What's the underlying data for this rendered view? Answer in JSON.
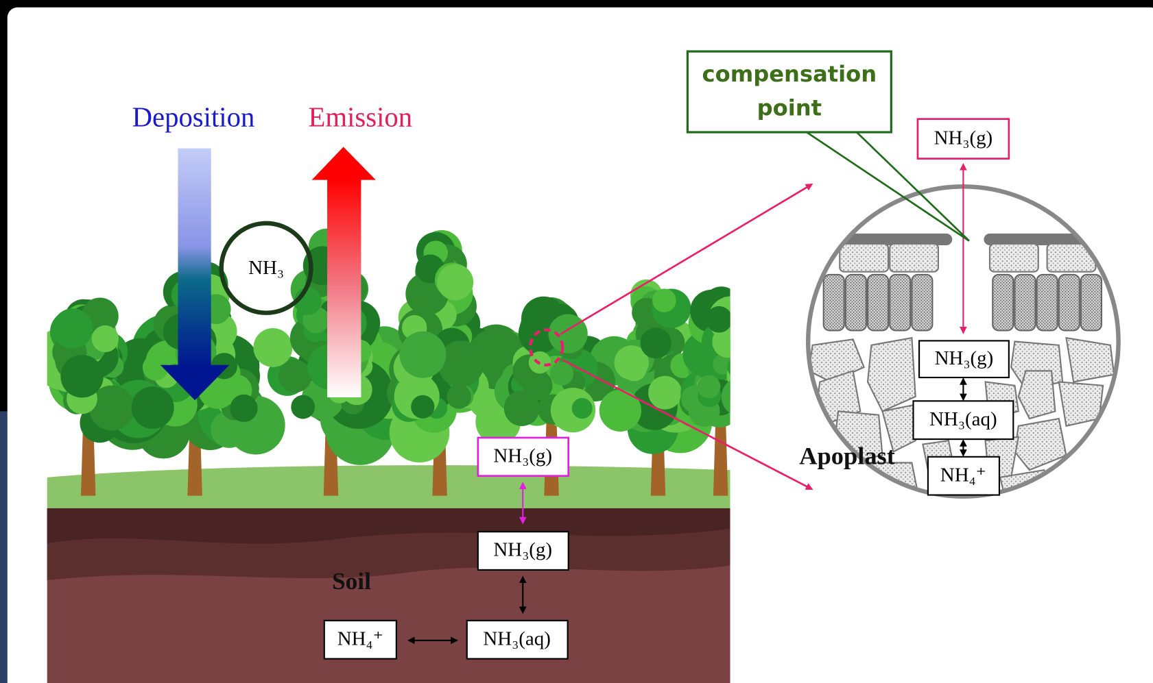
{
  "header": {
    "deposition": "Deposition",
    "emission": "Emission"
  },
  "canopy": {
    "molecule": "NH₃"
  },
  "soil": {
    "label": "Soil",
    "nodes": [
      "NH₃(g)",
      "NH₃(g)",
      "NH₃(aq)",
      "NH₄⁺"
    ]
  },
  "leaf": {
    "callout": "compensation point",
    "label": "Apoplast",
    "nodes": [
      "NH₃(g)",
      "NH₃(g)",
      "NH₃(aq)",
      "NH₄⁺"
    ]
  }
}
